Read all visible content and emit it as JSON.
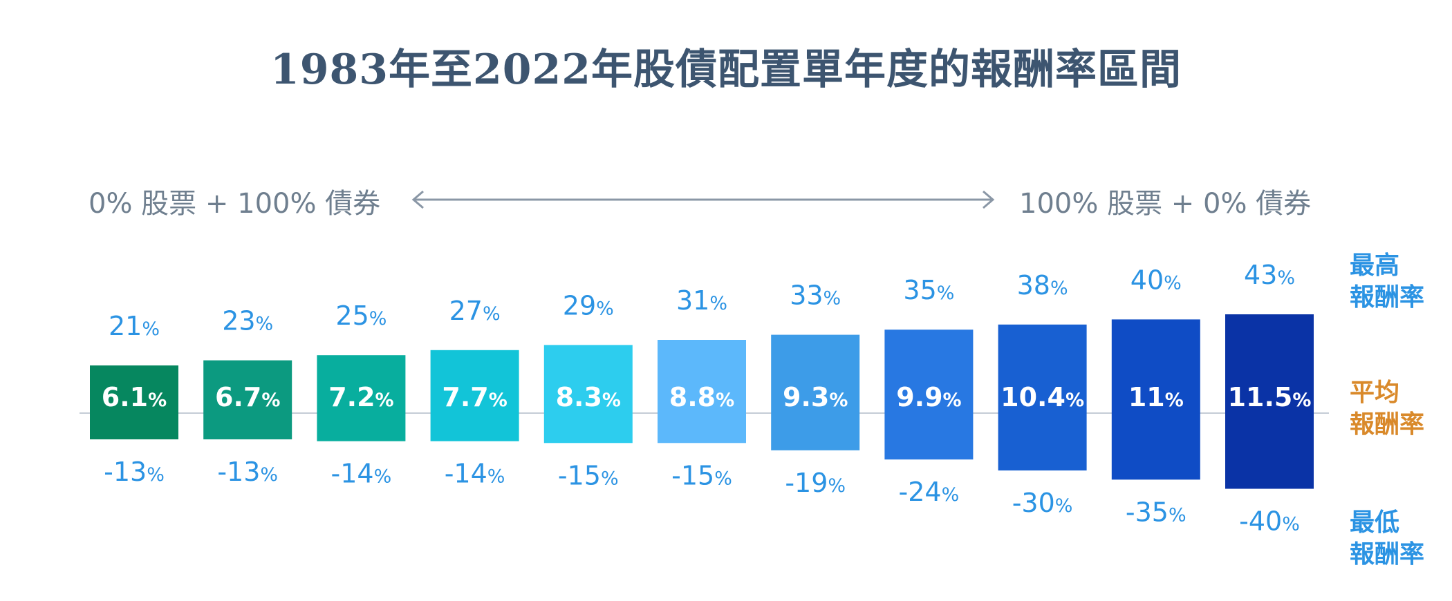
{
  "title": "1983年至2022年股債配置單年度的報酬率區間",
  "range": {
    "left": "0% 股票 + 100% 債券",
    "right": "100% 股票 + 0% 債券"
  },
  "side_labels": {
    "max": [
      "最高",
      "報酬率"
    ],
    "avg": [
      "平均",
      "報酬率"
    ],
    "min": [
      "最低",
      "報酬率"
    ]
  },
  "colors": {
    "title": "#3d5570",
    "range_text": "#6f7f8f",
    "label_blue": "#2b93e3",
    "label_orange": "#d9892a",
    "baseline": "#c4ccd6"
  },
  "chart_data": {
    "type": "bar",
    "categories": [
      "0% 股票 + 100% 債券",
      "",
      "",
      "",
      "",
      "",
      "",
      "",
      "",
      "",
      "100% 股票 + 0% 債券"
    ],
    "series": [
      {
        "name": "最高報酬率",
        "values": [
          21,
          23,
          25,
          27,
          29,
          31,
          33,
          35,
          38,
          40,
          43
        ]
      },
      {
        "name": "平均報酬率",
        "values": [
          6.1,
          6.7,
          7.2,
          7.7,
          8.3,
          8.8,
          9.3,
          9.9,
          10.4,
          11,
          11.5
        ]
      },
      {
        "name": "最低報酬率",
        "values": [
          -13,
          -13,
          -14,
          -14,
          -15,
          -15,
          -19,
          -24,
          -30,
          -35,
          -40
        ]
      }
    ],
    "max_labels": [
      "21",
      "23",
      "25",
      "27",
      "29",
      "31",
      "33",
      "35",
      "38",
      "40",
      "43"
    ],
    "avg_labels": [
      "6.1",
      "6.7",
      "7.2",
      "7.7",
      "8.3",
      "8.8",
      "9.3",
      "9.9",
      "10.4",
      "11",
      "11.5"
    ],
    "min_labels": [
      "-13",
      "-13",
      "-14",
      "-14",
      "-15",
      "-15",
      "-19",
      "-24",
      "-30",
      "-35",
      "-40"
    ],
    "unit": "%",
    "bar_colors": [
      "#06875f",
      "#0c9a80",
      "#08ae9e",
      "#12c4d8",
      "#2dcdee",
      "#5cb8fb",
      "#3d9ce8",
      "#2878e2",
      "#1860d2",
      "#0f4cc5",
      "#0a33a6"
    ],
    "grid": false,
    "legend": "right"
  }
}
